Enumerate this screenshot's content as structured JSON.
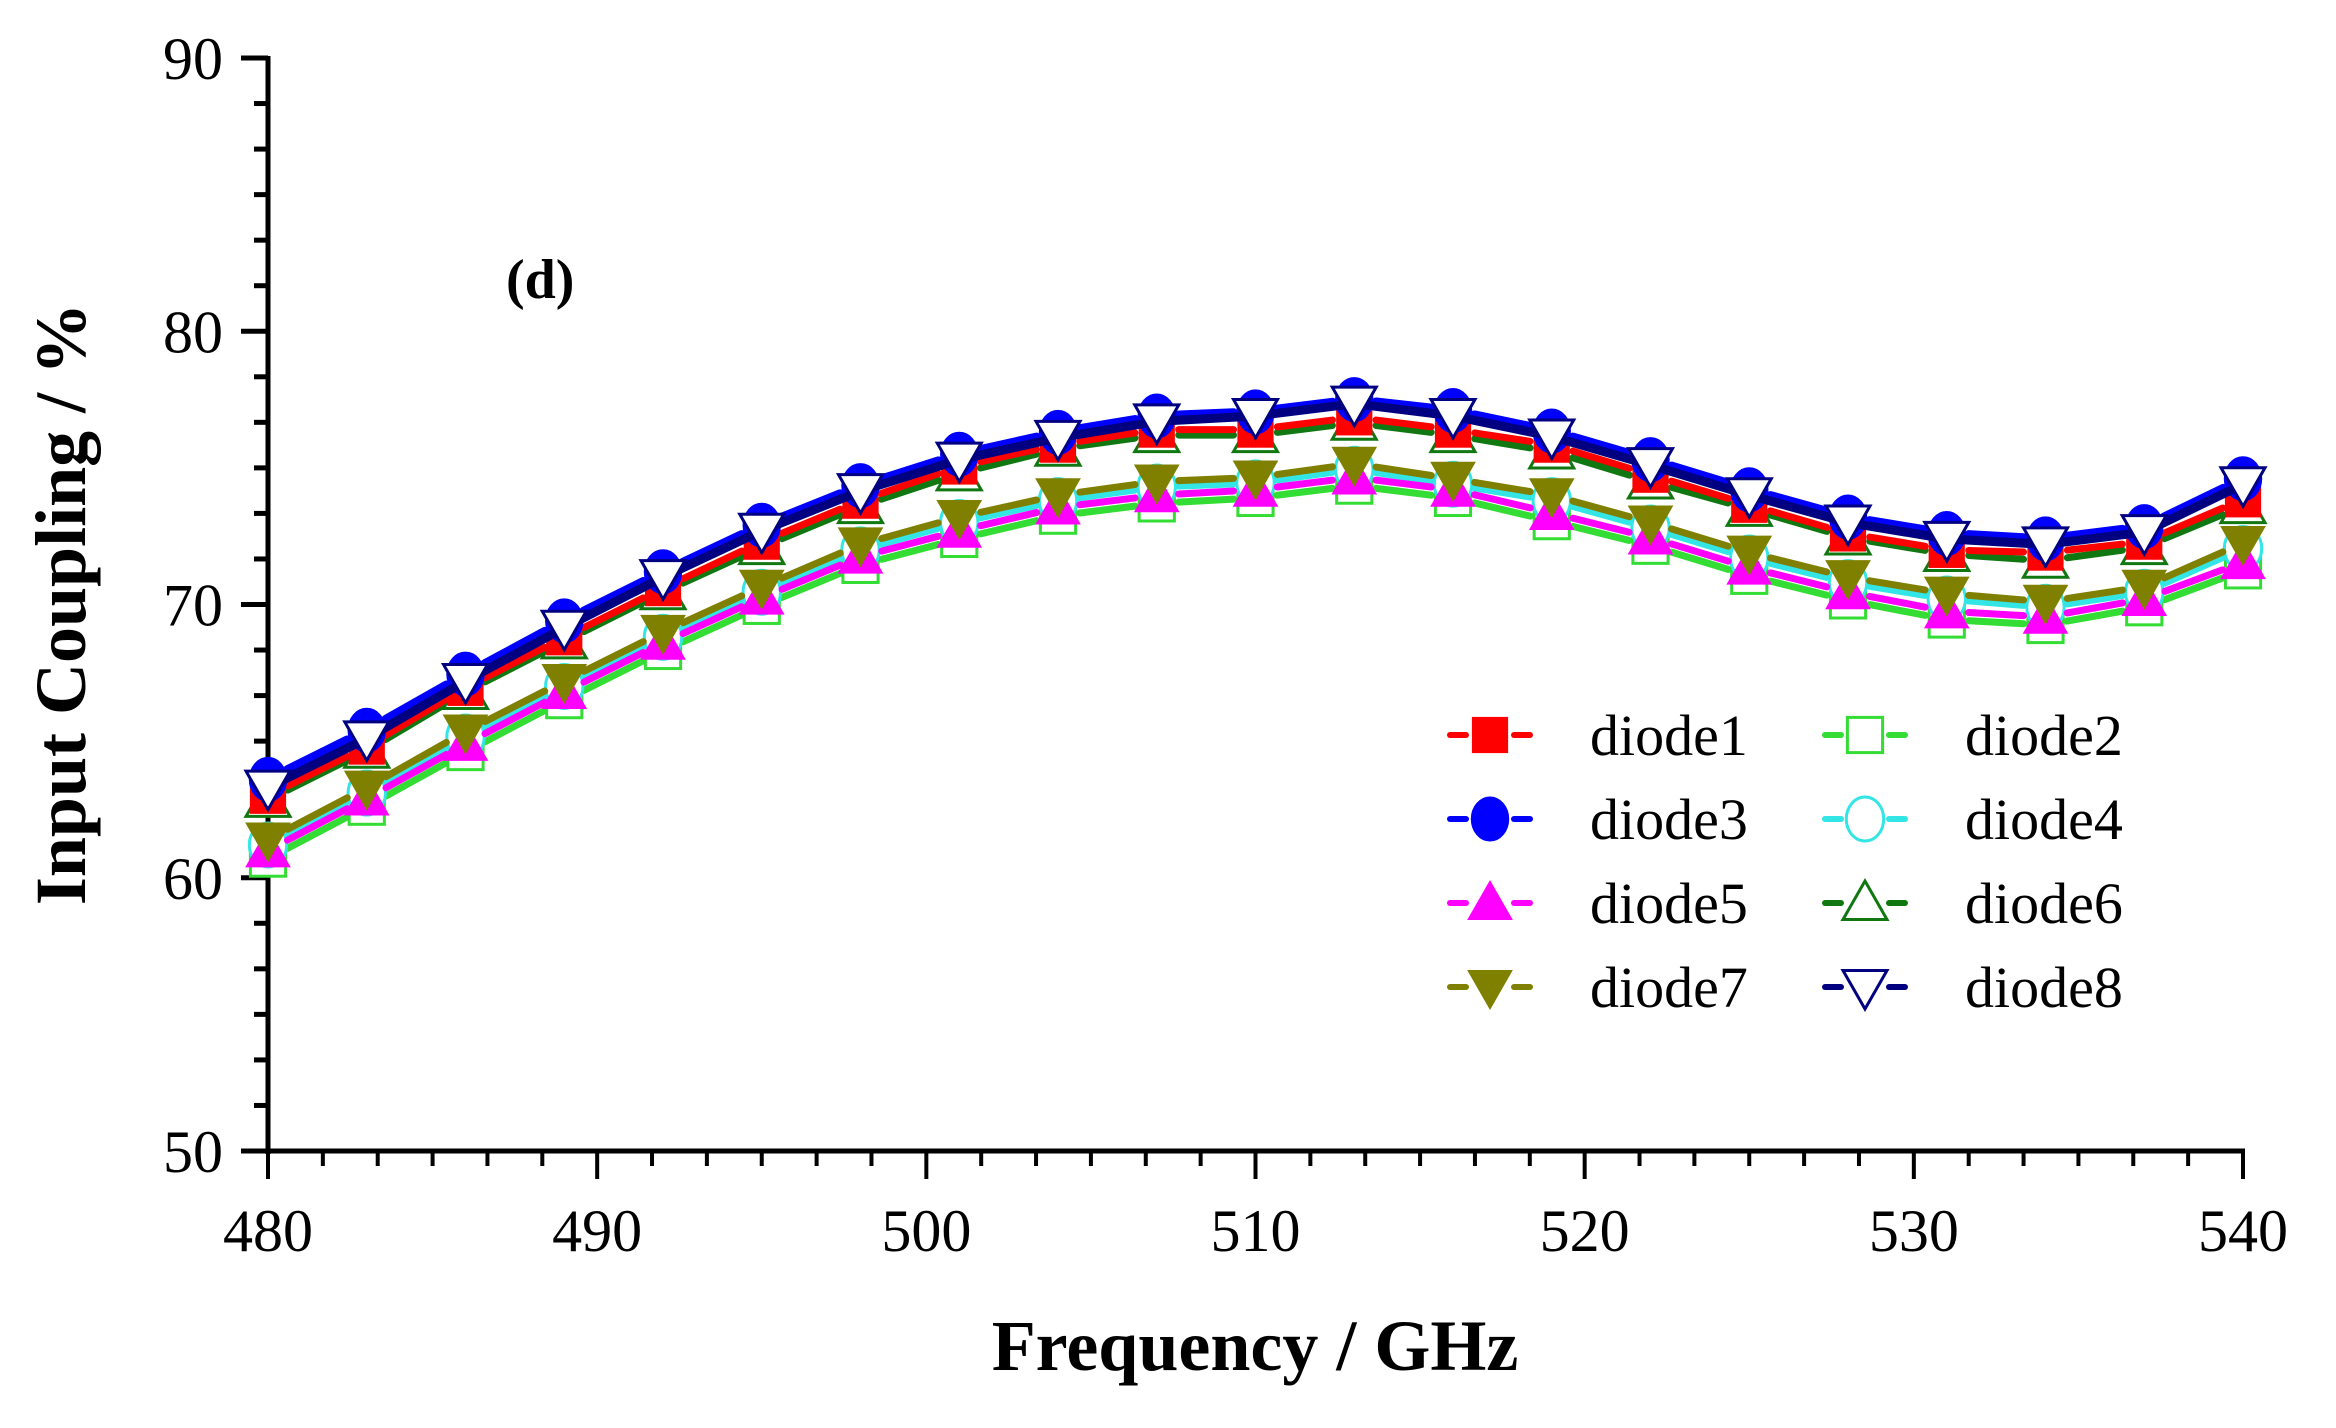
{
  "chart_data": {
    "type": "line",
    "title": "",
    "panel_label": "(d)",
    "xlabel": "Frequency / GHz",
    "ylabel": "Input Coupling / %",
    "xlim": [
      480,
      540
    ],
    "ylim": [
      50,
      90
    ],
    "xticks": [
      480,
      490,
      500,
      510,
      520,
      530,
      540
    ],
    "yticks": [
      50,
      60,
      70,
      80,
      90
    ],
    "xtick_labels": [
      "480",
      "490",
      "500",
      "510",
      "520",
      "530",
      "540"
    ],
    "ytick_labels": [
      "50",
      "60",
      "70",
      "80",
      "90"
    ],
    "minor_ticks_per_interval": 5,
    "grid": false,
    "legend_position": "center-right",
    "x": [
      480,
      483,
      486,
      489,
      492,
      495,
      498,
      501,
      504,
      507,
      510,
      513,
      516,
      519,
      522,
      525,
      528,
      531,
      534,
      537,
      540
    ],
    "series": [
      {
        "name": "diode1",
        "color": "#ff0000",
        "marker": "square",
        "filled": true,
        "line": "dash",
        "values": [
          63.0,
          64.8,
          66.95,
          68.8,
          70.6,
          72.3,
          73.8,
          75.05,
          75.85,
          76.4,
          76.4,
          76.85,
          76.4,
          75.85,
          74.75,
          73.65,
          72.6,
          72.0,
          71.9,
          72.3,
          73.85
        ]
      },
      {
        "name": "diode2",
        "color": "#33dd33",
        "marker": "square",
        "filled": false,
        "line": "dash",
        "values": [
          60.7,
          62.6,
          64.6,
          66.5,
          68.3,
          69.95,
          71.45,
          72.4,
          73.25,
          73.7,
          73.9,
          74.35,
          73.9,
          73.05,
          72.15,
          71.05,
          70.15,
          69.45,
          69.25,
          69.9,
          71.25
        ]
      },
      {
        "name": "diode3",
        "color": "#0000ff",
        "marker": "circle",
        "filled": true,
        "line": "dash",
        "values": [
          63.6,
          65.4,
          67.45,
          69.4,
          71.2,
          72.9,
          74.35,
          75.5,
          76.3,
          76.9,
          77.05,
          77.5,
          77.1,
          76.35,
          75.3,
          74.2,
          73.2,
          72.6,
          72.4,
          72.85,
          74.6
        ]
      },
      {
        "name": "diode4",
        "color": "#33e5e5",
        "marker": "circle",
        "filled": false,
        "line": "dash",
        "values": [
          61.2,
          63.1,
          65.15,
          67.0,
          68.8,
          70.45,
          72.0,
          73.0,
          73.8,
          74.3,
          74.45,
          74.95,
          74.4,
          73.8,
          72.8,
          71.7,
          70.8,
          70.2,
          69.9,
          70.45,
          72.05
        ]
      },
      {
        "name": "diode5",
        "color": "#ff00ff",
        "marker": "triangle-up",
        "filled": true,
        "line": "dash",
        "values": [
          61.0,
          62.9,
          64.9,
          66.8,
          68.6,
          70.25,
          71.75,
          72.7,
          73.55,
          74.0,
          74.2,
          74.65,
          74.2,
          73.35,
          72.45,
          71.35,
          70.45,
          69.75,
          69.55,
          70.2,
          71.55
        ]
      },
      {
        "name": "diode6",
        "color": "#117711",
        "marker": "triangle-up",
        "filled": false,
        "line": "dash",
        "values": [
          62.85,
          64.65,
          66.8,
          68.65,
          70.45,
          72.1,
          73.6,
          74.8,
          75.7,
          76.2,
          76.2,
          76.65,
          76.2,
          75.6,
          74.5,
          73.5,
          72.45,
          71.85,
          71.6,
          72.1,
          73.6
        ]
      },
      {
        "name": "diode7",
        "color": "#808000",
        "marker": "triangle-down",
        "filled": true,
        "line": "dash",
        "values": [
          61.4,
          63.3,
          65.35,
          67.2,
          69.0,
          70.65,
          72.2,
          73.2,
          74.0,
          74.5,
          74.65,
          75.15,
          74.6,
          74.0,
          73.0,
          71.9,
          71.0,
          70.4,
          70.1,
          70.65,
          72.25
        ]
      },
      {
        "name": "diode8",
        "color": "#000080",
        "marker": "triangle-down",
        "filled": false,
        "line": "solid",
        "values": [
          63.3,
          65.1,
          67.2,
          69.15,
          71.0,
          72.7,
          74.15,
          75.3,
          76.1,
          76.7,
          76.9,
          77.35,
          76.9,
          76.15,
          75.1,
          74.0,
          73.0,
          72.4,
          72.2,
          72.65,
          74.4
        ]
      }
    ],
    "legend_order": [
      "diode1",
      "diode2",
      "diode3",
      "diode4",
      "diode5",
      "diode6",
      "diode7",
      "diode8"
    ]
  }
}
